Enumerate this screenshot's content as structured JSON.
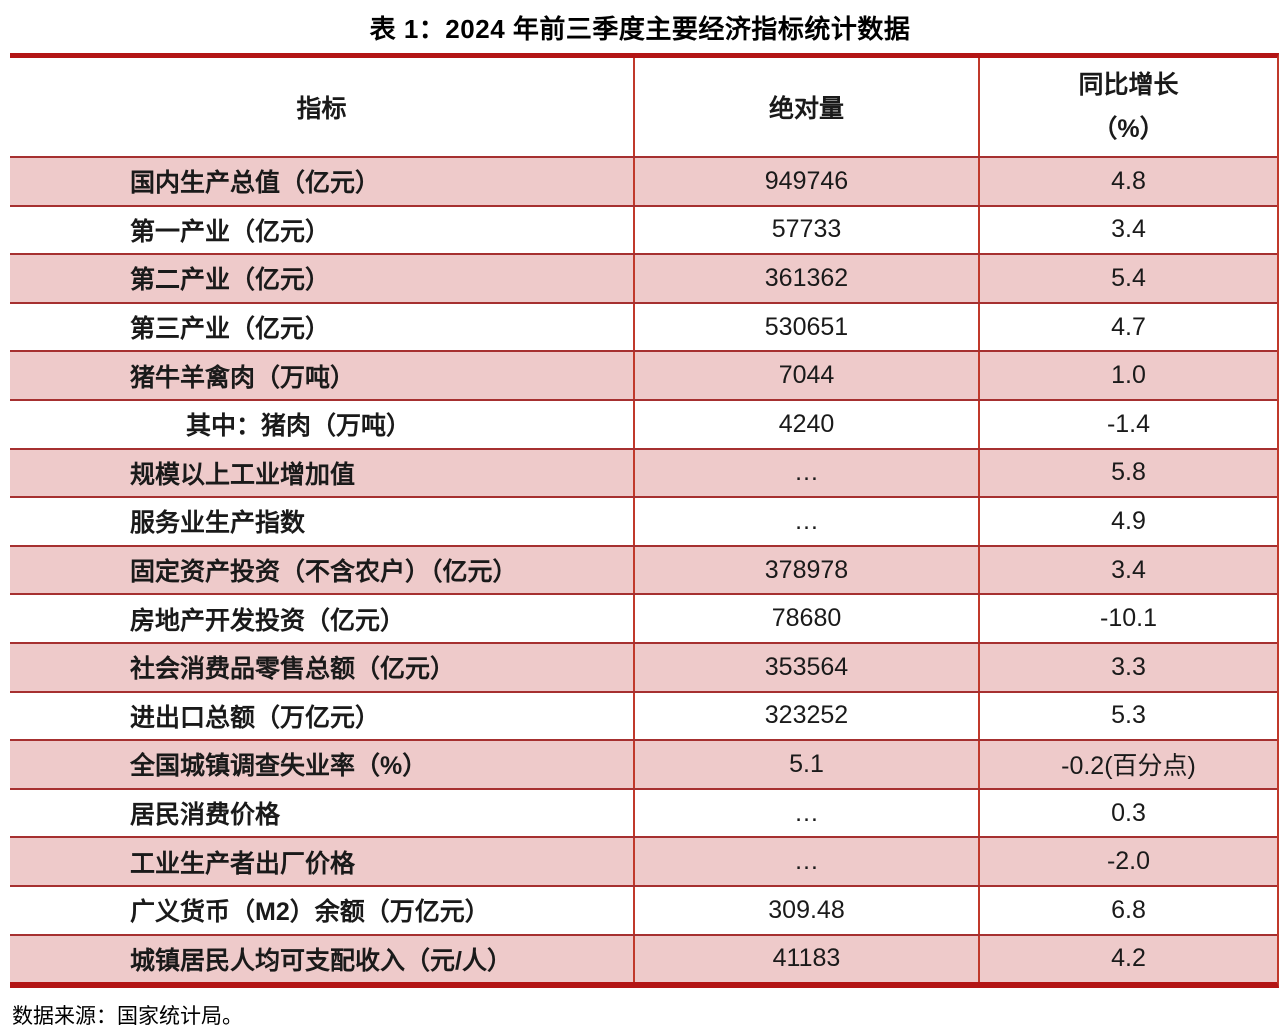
{
  "title": "表 1：2024 年前三季度主要经济指标统计数据",
  "colors": {
    "accent_red_thick_border": "#b31515",
    "horizontal_rule_red": "#a63030",
    "vertical_rule_red": "#c0392b",
    "row_shading_pink": "#eecaca",
    "text": "#1a1a1a"
  },
  "table": {
    "headers": {
      "indicator": "指标",
      "absolute": "绝对量",
      "growth_line1": "同比增长",
      "growth_line2": "（%）"
    },
    "rows": [
      {
        "indicator": "国内生产总值（亿元）",
        "absolute": "949746",
        "growth": "4.8",
        "indent": false
      },
      {
        "indicator": "第一产业（亿元）",
        "absolute": "57733",
        "growth": "3.4",
        "indent": false
      },
      {
        "indicator": "第二产业（亿元）",
        "absolute": "361362",
        "growth": "5.4",
        "indent": false
      },
      {
        "indicator": "第三产业（亿元）",
        "absolute": "530651",
        "growth": "4.7",
        "indent": false
      },
      {
        "indicator": "猪牛羊禽肉（万吨）",
        "absolute": "7044",
        "growth": "1.0",
        "indent": false
      },
      {
        "indicator": "其中：猪肉（万吨）",
        "absolute": "4240",
        "growth": "-1.4",
        "indent": true
      },
      {
        "indicator": "规模以上工业增加值",
        "absolute": "…",
        "growth": "5.8",
        "indent": false
      },
      {
        "indicator": "服务业生产指数",
        "absolute": "…",
        "growth": "4.9",
        "indent": false
      },
      {
        "indicator": "固定资产投资（不含农户）（亿元）",
        "absolute": "378978",
        "growth": "3.4",
        "indent": false
      },
      {
        "indicator": "房地产开发投资（亿元）",
        "absolute": "78680",
        "growth": "-10.1",
        "indent": false
      },
      {
        "indicator": "社会消费品零售总额（亿元）",
        "absolute": "353564",
        "growth": "3.3",
        "indent": false
      },
      {
        "indicator": "进出口总额（万亿元）",
        "absolute": "323252",
        "growth": "5.3",
        "indent": false
      },
      {
        "indicator": "全国城镇调查失业率（%）",
        "absolute": "5.1",
        "growth": "-0.2(百分点)",
        "indent": false
      },
      {
        "indicator": "居民消费价格",
        "absolute": "…",
        "growth": "0.3",
        "indent": false
      },
      {
        "indicator": "工业生产者出厂价格",
        "absolute": "…",
        "growth": "-2.0",
        "indent": false
      },
      {
        "indicator": "广义货币（M2）余额（万亿元）",
        "absolute": "309.48",
        "growth": "6.8",
        "indent": false
      },
      {
        "indicator": "城镇居民人均可支配收入（元/人）",
        "absolute": "41183",
        "growth": "4.2",
        "indent": false
      }
    ]
  },
  "footer": {
    "source": "数据来源：国家统计局。"
  },
  "chart_data": {
    "type": "table",
    "title": "表 1：2024 年前三季度主要经济指标统计数据",
    "columns": [
      "指标",
      "绝对量",
      "同比增长（%）"
    ],
    "rows": [
      [
        "国内生产总值（亿元）",
        "949746",
        "4.8"
      ],
      [
        "第一产业（亿元）",
        "57733",
        "3.4"
      ],
      [
        "第二产业（亿元）",
        "361362",
        "5.4"
      ],
      [
        "第三产业（亿元）",
        "530651",
        "4.7"
      ],
      [
        "猪牛羊禽肉（万吨）",
        "7044",
        "1.0"
      ],
      [
        "其中：猪肉（万吨）",
        "4240",
        "-1.4"
      ],
      [
        "规模以上工业增加值",
        "…",
        "5.8"
      ],
      [
        "服务业生产指数",
        "…",
        "4.9"
      ],
      [
        "固定资产投资（不含农户）（亿元）",
        "378978",
        "3.4"
      ],
      [
        "房地产开发投资（亿元）",
        "78680",
        "-10.1"
      ],
      [
        "社会消费品零售总额（亿元）",
        "353564",
        "3.3"
      ],
      [
        "进出口总额（万亿元）",
        "323252",
        "5.3"
      ],
      [
        "全国城镇调查失业率（%）",
        "5.1",
        "-0.2(百分点)"
      ],
      [
        "居民消费价格",
        "…",
        "0.3"
      ],
      [
        "工业生产者出厂价格",
        "…",
        "-2.0"
      ],
      [
        "广义货币（M2）余额（万亿元）",
        "309.48",
        "6.8"
      ],
      [
        "城镇居民人均可支配收入（元/人）",
        "41183",
        "4.2"
      ]
    ],
    "source_note": "数据来源：国家统计局。"
  }
}
